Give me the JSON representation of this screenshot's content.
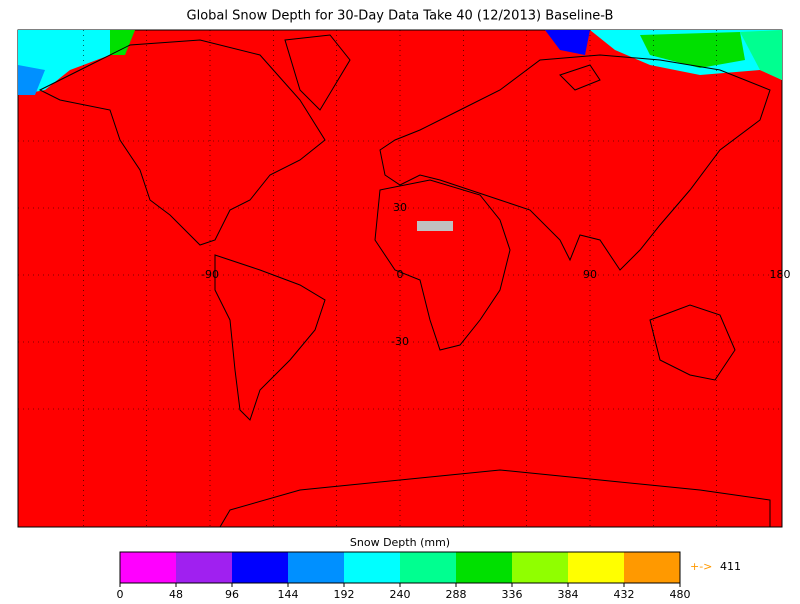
{
  "title": "Global Snow Depth for 30-Day Data Take 40 (12/2013) Baseline-B",
  "map": {
    "fill_color": "#ff0000",
    "longitude_labels": [
      {
        "value": -90,
        "label": "-90"
      },
      0,
      90,
      180
    ],
    "latitude_labels": [
      30,
      {
        "value": -30,
        "label": "-30"
      }
    ]
  },
  "colorbar": {
    "label": "Snow Depth (mm)",
    "ticks": [
      0,
      48,
      96,
      144,
      192,
      240,
      288,
      336,
      384,
      432,
      480
    ],
    "colors": [
      "#ff00ff",
      "#a020f0",
      "#0000ff",
      "#0090ff",
      "#00ffff",
      "#00ff90",
      "#00e000",
      "#90ff00",
      "#ffff00",
      "#ff9900"
    ],
    "max_arrow": "+->",
    "max_value": 411
  }
}
